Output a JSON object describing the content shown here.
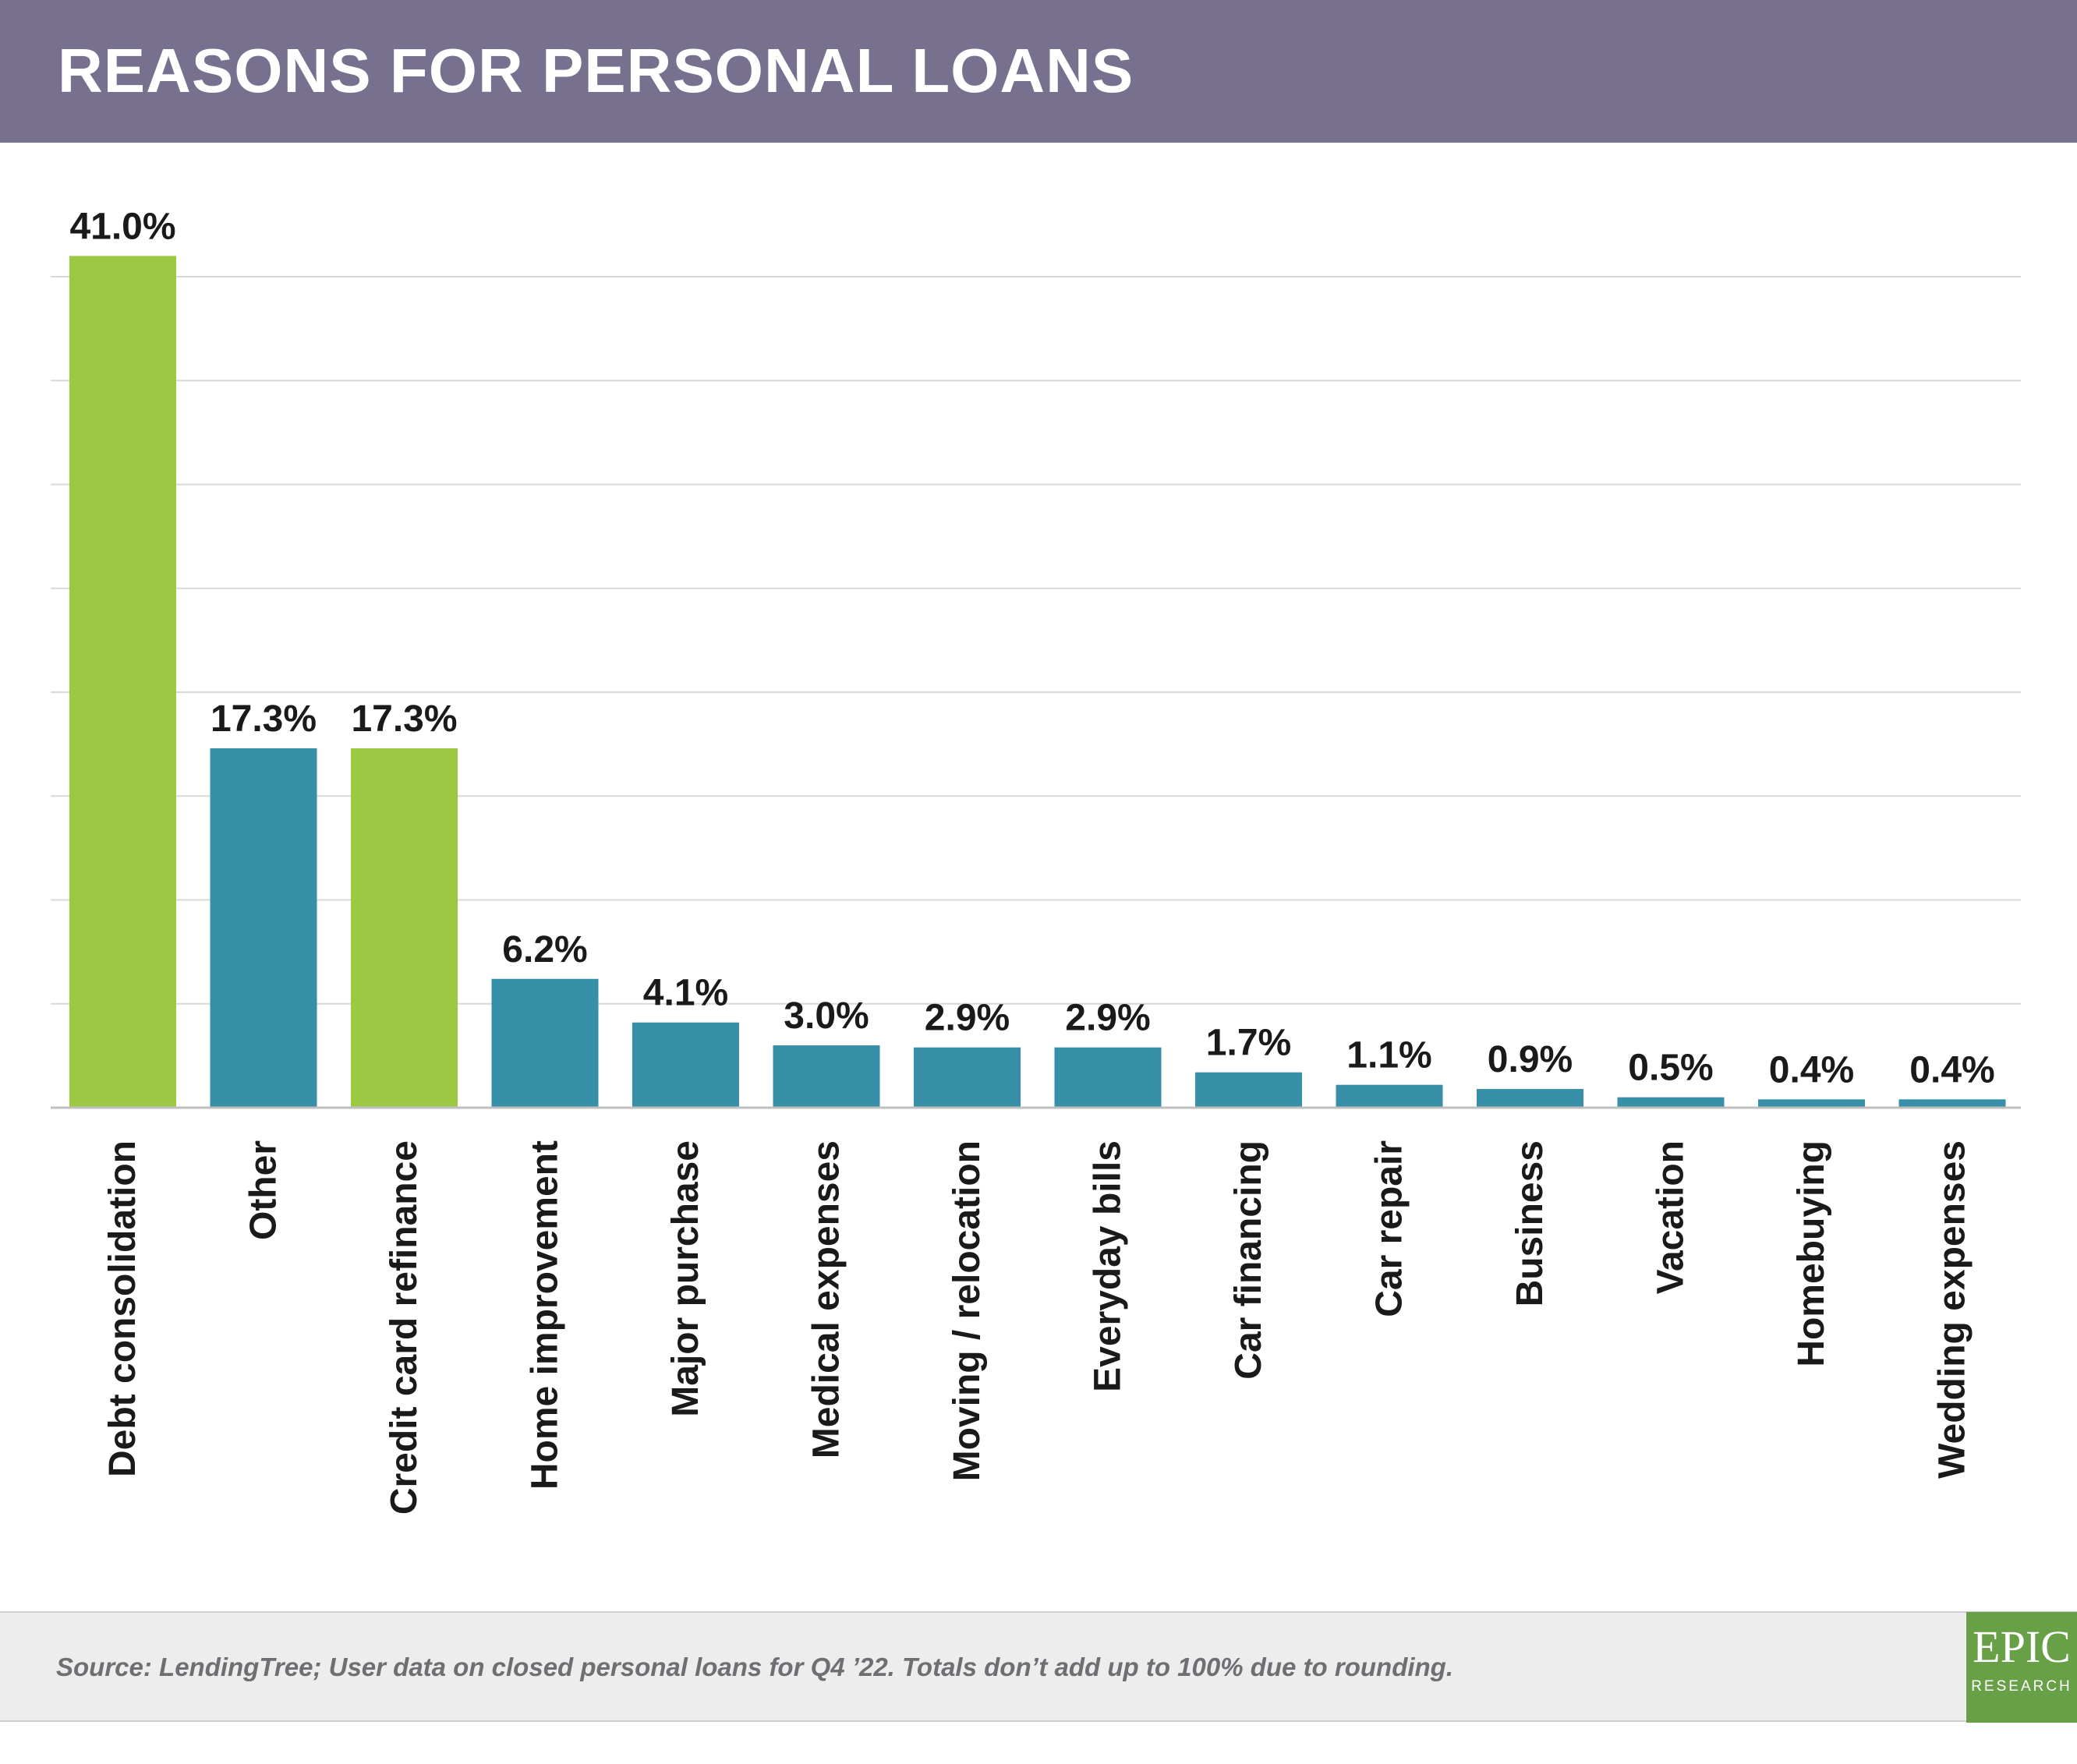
{
  "header": {
    "title": "REASONS FOR PERSONAL LOANS"
  },
  "footer": {
    "source": "Source: LendingTree; User data on closed personal loans for Q4 ’22. Totals don’t add up to 100% due to rounding.",
    "logo_main": "EPIC",
    "logo_sub": "RESEARCH"
  },
  "colors": {
    "header_bg": "#77708e",
    "highlight_bar": "#9bc944",
    "bar": "#378fa8",
    "logo_bg": "#68a047"
  },
  "chart_data": {
    "type": "bar",
    "title": "REASONS FOR PERSONAL LOANS",
    "xlabel": "",
    "ylabel": "",
    "ylim": [
      0,
      40
    ],
    "grid": true,
    "legend": "none",
    "categories": [
      "Debt consolidation",
      "Other",
      "Credit card refinance",
      "Home improvement",
      "Major purchase",
      "Medical expenses",
      "Moving / relocation",
      "Everyday bills",
      "Car financing",
      "Car repair",
      "Business",
      "Vacation",
      "Homebuying",
      "Wedding expenses"
    ],
    "values": [
      41.0,
      17.3,
      17.3,
      6.2,
      4.1,
      3.0,
      2.9,
      2.9,
      1.7,
      1.1,
      0.9,
      0.5,
      0.4,
      0.4
    ],
    "data_labels": [
      "41.0%",
      "17.3%",
      "17.3%",
      "6.2%",
      "4.1%",
      "3.0%",
      "2.9%",
      "2.9%",
      "1.7%",
      "1.1%",
      "0.9%",
      "0.5%",
      "0.4%",
      "0.4%"
    ],
    "highlighted": [
      true,
      false,
      true,
      false,
      false,
      false,
      false,
      false,
      false,
      false,
      false,
      false,
      false,
      false
    ]
  }
}
